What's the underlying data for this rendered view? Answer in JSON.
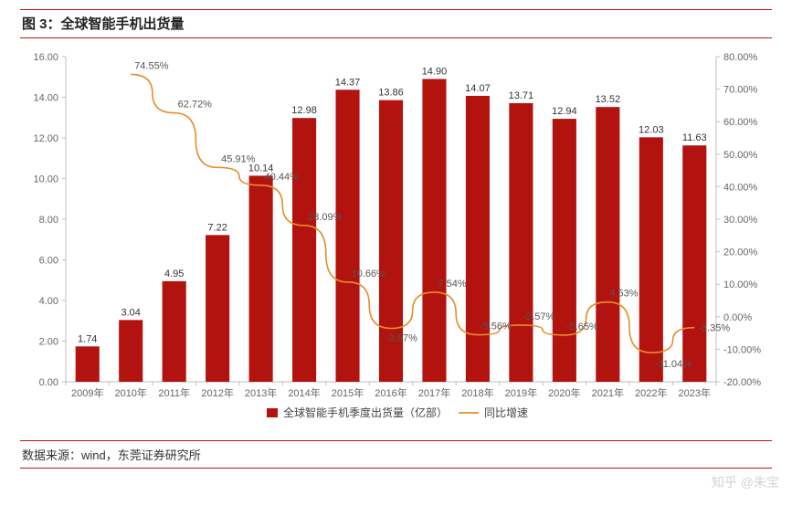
{
  "title": "图 3：全球智能手机出货量",
  "source": "数据来源：wind，东莞证券研究所",
  "watermark": "知乎 @朱宝",
  "chart": {
    "type": "bar+line",
    "bar_color": "#b3130f",
    "line_color": "#e78d2e",
    "axis_color": "#bfbfbf",
    "tick_color": "#666666",
    "background": "#ffffff",
    "title_fontsize": 15,
    "axis_fontsize": 11,
    "bar_width_ratio": 0.55,
    "left_axis": {
      "min": 0.0,
      "max": 16.0,
      "step": 2.0,
      "decimals": 2
    },
    "right_axis": {
      "min": -20.0,
      "max": 80.0,
      "step": 10.0,
      "decimals": 2,
      "suffix": "%"
    },
    "categories": [
      "2009年",
      "2010年",
      "2011年",
      "2012年",
      "2013年",
      "2014年",
      "2015年",
      "2016年",
      "2017年",
      "2018年",
      "2019年",
      "2020年",
      "2021年",
      "2022年",
      "2023年"
    ],
    "bars": [
      1.74,
      3.04,
      4.95,
      7.22,
      10.14,
      12.98,
      14.37,
      13.86,
      14.9,
      14.07,
      13.71,
      12.94,
      13.52,
      12.03,
      11.63
    ],
    "growth": [
      null,
      74.55,
      62.72,
      45.91,
      40.44,
      28.09,
      10.66,
      -3.57,
      7.54,
      -5.56,
      -2.57,
      -5.65,
      4.53,
      -11.04,
      -3.35
    ],
    "legend": {
      "bar": "全球智能手机季度出货量（亿部）",
      "line": "同比增速"
    }
  }
}
